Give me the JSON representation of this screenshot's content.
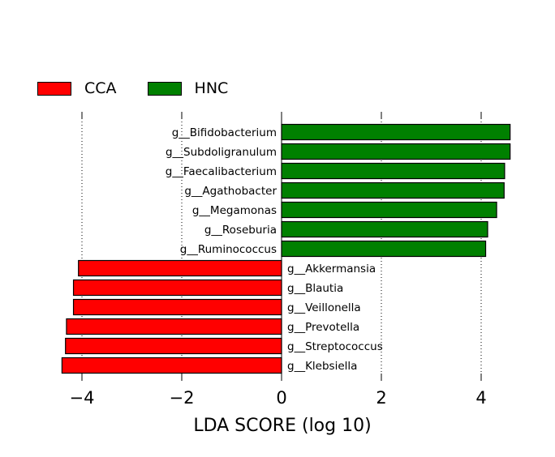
{
  "chart_data": {
    "type": "bar",
    "orientation": "horizontal",
    "xlabel": "LDA SCORE (log 10)",
    "xlim": [
      -4.5,
      4.8
    ],
    "xticks": [
      -4,
      -2,
      0,
      2,
      4
    ],
    "xtick_labels": [
      "−4",
      "−2",
      "0",
      "2",
      "4"
    ],
    "grid": "vertical dotted",
    "legend": {
      "position": "top-left",
      "entries": [
        {
          "label": "CCA",
          "color": "#ff0000"
        },
        {
          "label": "HNC",
          "color": "#008000"
        }
      ]
    },
    "categories": [
      "g__Bifidobacterium",
      "g__Subdoligranulum",
      "g__Faecalibacterium",
      "g__Agathobacter",
      "g__Megamonas",
      "g__Roseburia",
      "g__Ruminococcus",
      "g__Akkermansia",
      "g__Blautia",
      "g__Veillonella",
      "g__Prevotella",
      "g__Streptococcus",
      "g__Klebsiella"
    ],
    "values": [
      4.58,
      4.58,
      4.47,
      4.46,
      4.31,
      4.13,
      4.09,
      -4.07,
      -4.17,
      -4.17,
      -4.31,
      -4.33,
      -4.4
    ],
    "groups": [
      "HNC",
      "HNC",
      "HNC",
      "HNC",
      "HNC",
      "HNC",
      "HNC",
      "CCA",
      "CCA",
      "CCA",
      "CCA",
      "CCA",
      "CCA"
    ]
  }
}
